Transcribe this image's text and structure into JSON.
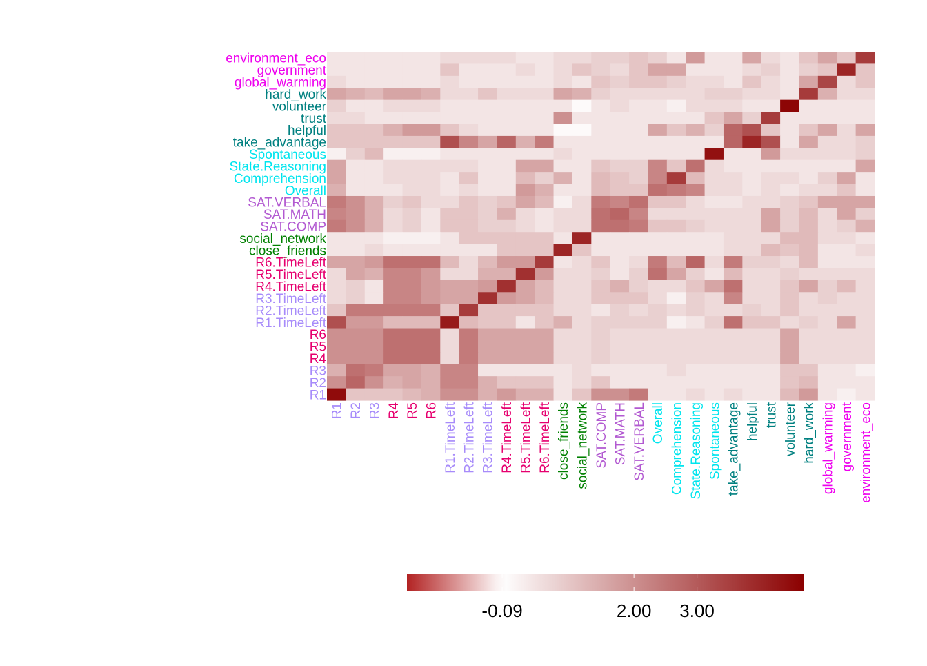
{
  "chart_data": {
    "type": "heatmap",
    "title": "",
    "xlabel": "",
    "ylabel": "",
    "variables": [
      "R1",
      "R2",
      "R3",
      "R4",
      "R5",
      "R6",
      "R1.TimeLeft",
      "R2.TimeLeft",
      "R3.TimeLeft",
      "R4.TimeLeft",
      "R5.TimeLeft",
      "R6.TimeLeft",
      "close_friends",
      "social_network",
      "SAT.COMP",
      "SAT.MATH",
      "SAT.VERBAL",
      "Overall",
      "Comprehension",
      "State.Reasoning",
      "Spontaneous",
      "take_advantage",
      "helpful",
      "trust",
      "volunteer",
      "hard_work",
      "global_warming",
      "government",
      "environment_eco"
    ],
    "groups": {
      "R1": "rounds_a",
      "R2": "rounds_a",
      "R3": "rounds_a",
      "R4": "rounds_b",
      "R5": "rounds_b",
      "R6": "rounds_b",
      "R1.TimeLeft": "rounds_a",
      "R2.TimeLeft": "rounds_a",
      "R3.TimeLeft": "rounds_a",
      "R4.TimeLeft": "rounds_b",
      "R5.TimeLeft": "rounds_b",
      "R6.TimeLeft": "rounds_b",
      "close_friends": "social",
      "social_network": "social",
      "SAT.COMP": "sat",
      "SAT.MATH": "sat",
      "SAT.VERBAL": "sat",
      "Overall": "reasoning",
      "Comprehension": "reasoning",
      "State.Reasoning": "reasoning",
      "Spontaneous": "reasoning",
      "take_advantage": "attitudes",
      "helpful": "attitudes",
      "trust": "attitudes",
      "volunteer": "attitudes",
      "hard_work": "attitudes",
      "global_warming": "policy",
      "government": "policy",
      "environment_eco": "policy"
    },
    "group_colors": {
      "rounds_a": "#A78BFA",
      "rounds_b": "#E6006F",
      "social": "#008000",
      "sat": "#B259D1",
      "reasoning": "#00E5EE",
      "attitudes": "#008080",
      "policy": "#EE00EE"
    },
    "values": [
      [
        4.5,
        1.0,
        1.0,
        1.0,
        1.2,
        1.4,
        2.0,
        2.0,
        1.4,
        1.8,
        1.4,
        1.4,
        0.4,
        1.0,
        2.0,
        2.0,
        2.4,
        0.4,
        0.4,
        0.6,
        0.4,
        0.6,
        0.4,
        0.4,
        1.2,
        1.8,
        0.4,
        0.2,
        0.4
      ],
      [
        2.0,
        2.8,
        2.0,
        1.4,
        1.6,
        1.4,
        2.2,
        2.2,
        1.4,
        1.0,
        1.0,
        1.0,
        0.4,
        0.6,
        1.0,
        0.4,
        0.4,
        0.4,
        0.4,
        0.4,
        0.4,
        0.4,
        0.4,
        0.4,
        1.0,
        1.2,
        0.4,
        0.4,
        0.4
      ],
      [
        1.4,
        2.6,
        2.4,
        1.6,
        1.6,
        1.4,
        2.2,
        2.2,
        0.4,
        0.4,
        0.4,
        0.4,
        0.4,
        0.6,
        0.4,
        0.4,
        0.4,
        0.4,
        0.6,
        0.4,
        0.4,
        0.4,
        0.4,
        0.4,
        1.0,
        1.0,
        0.4,
        0.4,
        0.2
      ],
      [
        2.0,
        2.0,
        2.0,
        2.6,
        2.6,
        2.6,
        0.6,
        2.4,
        1.6,
        1.6,
        1.6,
        1.6,
        0.6,
        0.6,
        0.8,
        0.6,
        0.6,
        0.6,
        0.6,
        0.6,
        0.6,
        0.6,
        0.6,
        0.6,
        1.6,
        0.6,
        0.6,
        0.6,
        0.6
      ],
      [
        2.0,
        2.0,
        2.0,
        2.6,
        2.6,
        2.6,
        0.6,
        2.4,
        1.6,
        1.6,
        1.6,
        1.6,
        0.6,
        0.6,
        0.8,
        0.6,
        0.6,
        0.6,
        0.6,
        0.6,
        0.6,
        0.6,
        0.6,
        0.6,
        1.6,
        0.6,
        0.6,
        0.6,
        0.6
      ],
      [
        2.0,
        2.0,
        2.0,
        2.6,
        2.6,
        2.6,
        0.6,
        2.4,
        1.6,
        1.6,
        1.6,
        1.6,
        0.6,
        0.6,
        0.8,
        0.6,
        0.6,
        0.6,
        0.6,
        0.6,
        0.6,
        0.6,
        0.6,
        0.6,
        1.6,
        0.6,
        0.6,
        0.6,
        0.6
      ],
      [
        3.2,
        1.8,
        1.8,
        1.2,
        1.2,
        1.2,
        4.2,
        1.2,
        1.0,
        1.0,
        0.4,
        1.0,
        1.4,
        0.6,
        0.8,
        0.8,
        0.8,
        0.8,
        0.2,
        0.4,
        0.8,
        2.6,
        1.0,
        1.0,
        0.6,
        0.8,
        0.6,
        1.6,
        0.6
      ],
      [
        1.0,
        2.4,
        2.4,
        2.4,
        2.4,
        2.4,
        1.0,
        3.6,
        1.0,
        1.0,
        1.0,
        1.0,
        0.6,
        0.6,
        0.4,
        0.8,
        0.6,
        0.8,
        0.6,
        0.8,
        0.6,
        0.6,
        0.8,
        0.6,
        1.0,
        0.6,
        0.6,
        0.6,
        0.6
      ],
      [
        0.6,
        0.8,
        0.4,
        2.2,
        2.2,
        1.8,
        1.6,
        1.6,
        3.8,
        1.8,
        1.6,
        1.2,
        0.6,
        0.6,
        1.0,
        1.0,
        1.0,
        0.6,
        0.2,
        0.8,
        0.6,
        2.2,
        0.6,
        0.6,
        1.0,
        0.6,
        0.8,
        0.6,
        0.6
      ],
      [
        0.6,
        0.8,
        0.4,
        2.2,
        2.2,
        1.8,
        1.6,
        1.6,
        1.8,
        3.8,
        1.6,
        1.2,
        0.6,
        0.6,
        1.0,
        1.4,
        0.8,
        0.6,
        0.6,
        1.0,
        1.6,
        2.6,
        0.6,
        0.6,
        1.0,
        1.6,
        0.8,
        1.2,
        0.6
      ],
      [
        0.6,
        1.6,
        1.4,
        2.2,
        2.2,
        1.8,
        0.6,
        0.6,
        1.4,
        1.4,
        3.8,
        1.8,
        0.6,
        0.6,
        0.8,
        0.4,
        0.8,
        2.6,
        1.6,
        0.8,
        0.4,
        1.2,
        0.6,
        0.6,
        0.8,
        0.6,
        0.6,
        0.6,
        0.6
      ],
      [
        1.6,
        1.6,
        1.8,
        2.6,
        2.6,
        2.6,
        1.2,
        0.6,
        1.2,
        1.8,
        1.8,
        3.6,
        0.4,
        0.6,
        1.0,
        0.4,
        0.6,
        2.4,
        1.2,
        2.8,
        0.6,
        2.4,
        0.8,
        0.8,
        0.6,
        1.2,
        0.4,
        0.4,
        0.4
      ],
      [
        0.4,
        0.4,
        0.6,
        0.4,
        0.4,
        0.4,
        0.4,
        0.4,
        0.4,
        1.0,
        1.0,
        1.0,
        4.0,
        1.0,
        0.4,
        0.4,
        0.4,
        0.4,
        0.4,
        0.4,
        0.4,
        0.6,
        0.6,
        1.2,
        1.0,
        1.2,
        0.4,
        0.4,
        0.6
      ],
      [
        0.4,
        0.4,
        0.4,
        0.2,
        0.2,
        0.2,
        0.4,
        1.0,
        1.0,
        1.0,
        1.0,
        1.0,
        0.4,
        4.0,
        0.4,
        0.4,
        0.4,
        0.4,
        0.4,
        0.4,
        0.4,
        0.6,
        0.6,
        0.6,
        1.2,
        1.2,
        0.6,
        0.6,
        0.4
      ],
      [
        2.4,
        2.0,
        1.4,
        0.6,
        0.8,
        0.4,
        1.0,
        1.0,
        0.8,
        0.8,
        0.6,
        0.4,
        0.6,
        0.6,
        2.6,
        2.6,
        2.4,
        1.0,
        1.0,
        0.8,
        0.6,
        0.6,
        0.6,
        1.6,
        0.8,
        1.2,
        0.6,
        0.8,
        1.4
      ],
      [
        2.2,
        2.0,
        1.4,
        0.6,
        0.8,
        0.4,
        1.0,
        1.0,
        0.8,
        1.4,
        0.6,
        0.4,
        0.6,
        0.6,
        2.6,
        2.8,
        2.2,
        0.6,
        0.6,
        0.6,
        0.6,
        0.6,
        0.6,
        1.6,
        0.8,
        1.2,
        0.6,
        1.6,
        0.8
      ],
      [
        2.4,
        2.0,
        1.4,
        0.8,
        1.0,
        0.6,
        0.6,
        1.0,
        0.8,
        1.0,
        1.6,
        1.2,
        0.2,
        0.6,
        2.4,
        2.2,
        2.6,
        1.0,
        1.0,
        0.6,
        0.4,
        0.4,
        0.6,
        0.6,
        0.8,
        1.0,
        1.6,
        1.6,
        1.6
      ],
      [
        1.4,
        0.4,
        0.4,
        0.4,
        0.6,
        0.6,
        0.4,
        0.6,
        0.4,
        0.4,
        1.8,
        1.4,
        0.4,
        0.4,
        1.2,
        1.0,
        1.0,
        2.6,
        2.4,
        2.2,
        0.6,
        0.6,
        0.4,
        0.6,
        0.4,
        0.6,
        0.6,
        1.0,
        0.4
      ],
      [
        1.6,
        0.4,
        0.4,
        0.6,
        0.6,
        0.6,
        0.4,
        1.0,
        0.4,
        0.4,
        1.2,
        0.8,
        1.4,
        0.4,
        1.2,
        1.0,
        0.8,
        2.2,
        3.6,
        1.2,
        0.6,
        0.6,
        0.4,
        0.6,
        0.6,
        0.4,
        0.8,
        1.6,
        0.4
      ],
      [
        1.6,
        0.4,
        0.4,
        0.6,
        0.6,
        0.6,
        0.6,
        0.6,
        0.4,
        0.4,
        1.6,
        1.6,
        0.4,
        0.4,
        1.0,
        0.8,
        0.8,
        2.2,
        1.0,
        2.6,
        0.6,
        0.4,
        0.4,
        0.4,
        0.4,
        0.4,
        0.4,
        0.4,
        1.6
      ],
      [
        0.2,
        0.8,
        1.2,
        0.2,
        0.2,
        0.2,
        0.4,
        0.4,
        0.4,
        0.4,
        0.4,
        0.4,
        0.6,
        0.4,
        0.4,
        0.4,
        0.4,
        0.4,
        0.4,
        0.4,
        4.4,
        0.4,
        0.4,
        1.8,
        0.6,
        0.6,
        0.6,
        0.6,
        0.8
      ],
      [
        1.0,
        1.0,
        1.0,
        1.0,
        1.0,
        1.0,
        3.2,
        2.2,
        1.6,
        2.8,
        1.4,
        2.4,
        0.4,
        0.4,
        0.4,
        0.4,
        0.4,
        0.4,
        0.4,
        0.4,
        0.4,
        2.8,
        4.0,
        3.2,
        0.4,
        1.6,
        0.6,
        0.6,
        0.8
      ],
      [
        1.0,
        1.0,
        1.0,
        1.4,
        1.8,
        1.8,
        1.0,
        0.6,
        0.4,
        0.4,
        0.4,
        0.4,
        0.0,
        0.0,
        0.4,
        0.4,
        0.4,
        1.6,
        1.0,
        1.4,
        0.8,
        2.8,
        3.2,
        1.0,
        0.4,
        1.0,
        1.6,
        0.6,
        1.6
      ],
      [
        0.6,
        0.6,
        0.4,
        0.4,
        0.4,
        0.4,
        0.4,
        0.4,
        0.4,
        0.4,
        0.4,
        0.4,
        2.0,
        0.4,
        0.4,
        0.4,
        0.4,
        0.4,
        0.4,
        0.4,
        1.0,
        1.6,
        0.8,
        3.6,
        0.4,
        0.4,
        0.4,
        0.4,
        0.4
      ],
      [
        0.8,
        0.4,
        0.4,
        0.6,
        0.6,
        0.6,
        0.4,
        0.4,
        0.4,
        0.4,
        0.4,
        0.4,
        0.4,
        0.0,
        0.4,
        0.6,
        0.4,
        0.4,
        0.2,
        0.6,
        0.6,
        0.6,
        0.4,
        0.4,
        4.6,
        0.4,
        0.4,
        0.4,
        0.4
      ],
      [
        1.6,
        1.4,
        1.2,
        1.6,
        1.6,
        1.4,
        0.6,
        0.6,
        1.0,
        0.6,
        0.6,
        0.6,
        1.6,
        1.4,
        0.8,
        0.6,
        0.6,
        0.6,
        0.6,
        0.6,
        0.8,
        0.8,
        0.6,
        0.6,
        0.4,
        3.6,
        1.4,
        0.6,
        0.6
      ],
      [
        0.6,
        0.4,
        0.4,
        0.4,
        0.4,
        0.4,
        0.6,
        0.4,
        0.4,
        0.4,
        0.4,
        0.4,
        0.6,
        0.4,
        1.0,
        0.8,
        1.0,
        1.0,
        0.8,
        0.6,
        0.6,
        0.4,
        1.0,
        0.6,
        0.4,
        1.6,
        3.4,
        0.6,
        1.0
      ],
      [
        0.4,
        0.4,
        0.4,
        0.4,
        0.4,
        0.4,
        1.0,
        0.4,
        0.4,
        0.4,
        0.6,
        0.4,
        0.6,
        1.0,
        0.8,
        0.6,
        1.0,
        1.6,
        1.6,
        0.4,
        0.4,
        0.4,
        0.6,
        0.8,
        0.4,
        0.8,
        1.0,
        4.0,
        1.0
      ],
      [
        0.4,
        0.4,
        0.4,
        0.4,
        0.4,
        0.4,
        0.6,
        0.6,
        0.6,
        0.6,
        0.4,
        0.4,
        0.6,
        0.6,
        0.8,
        0.8,
        1.0,
        0.8,
        0.4,
        1.8,
        0.4,
        0.4,
        1.6,
        0.6,
        0.4,
        1.0,
        1.6,
        1.0,
        3.6
      ]
    ],
    "colorbar": {
      "min": -1.6,
      "max": 4.7,
      "ticks": [
        -0.09,
        2.0,
        3.0
      ],
      "tick_labels": [
        "-0.09",
        "2.00",
        "3.00"
      ],
      "low_color": "#B22222",
      "mid_color": "#FFFFFF",
      "mid_value": -0.09,
      "high_color": "#8B0000",
      "orientation": "horizontal",
      "position": "bottom"
    },
    "grid": false,
    "legend": "bottom"
  }
}
